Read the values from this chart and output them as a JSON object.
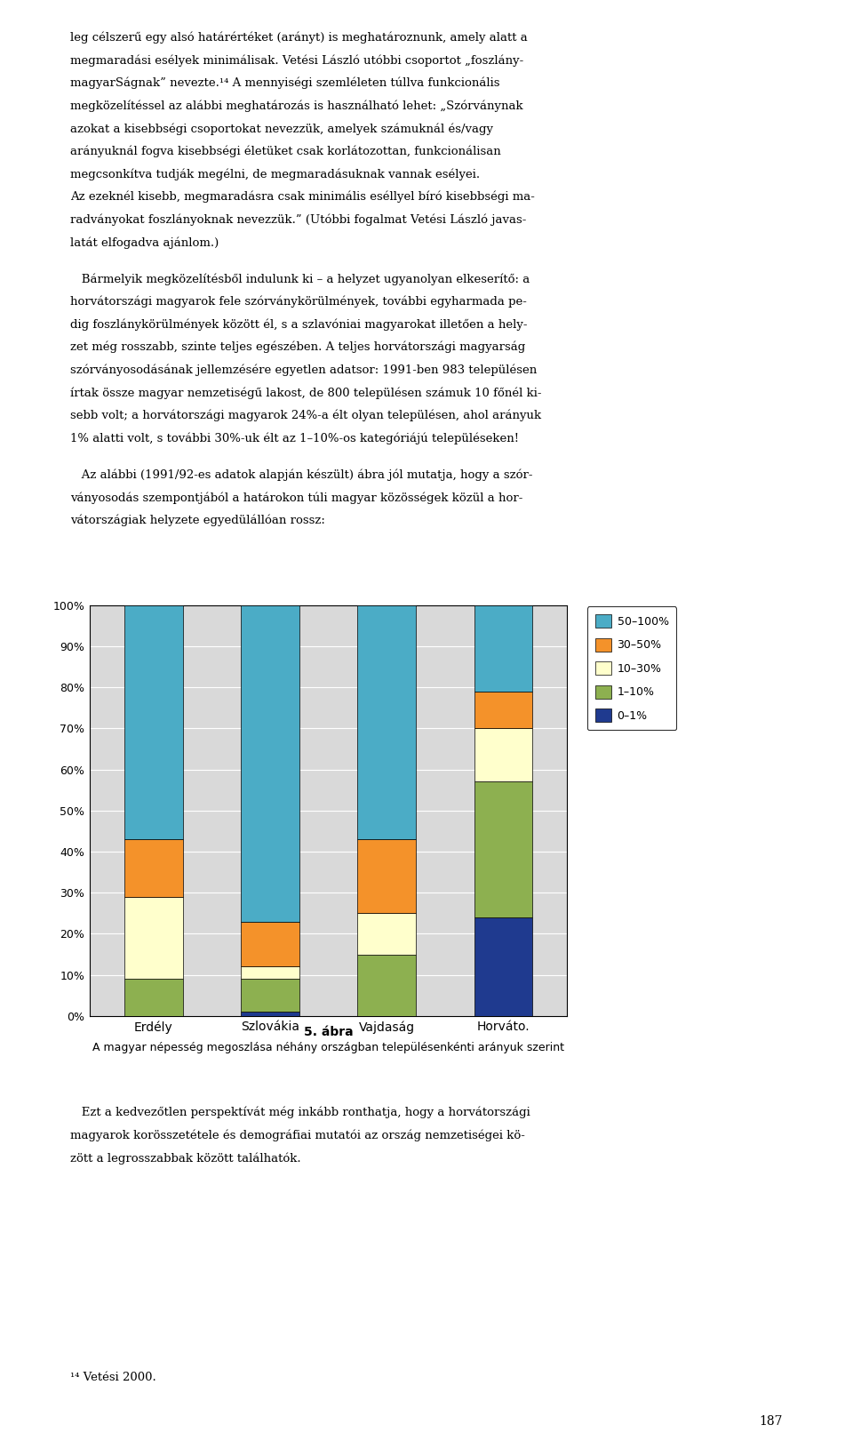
{
  "categories": [
    "Erdély",
    "Szlovákia",
    "Vajdaság",
    "Horváto."
  ],
  "series_order": [
    "0-1%",
    "1-10%",
    "10-30%",
    "30-50%",
    "50-100%"
  ],
  "series": {
    "0-1%": [
      0,
      1,
      0,
      24
    ],
    "1-10%": [
      9,
      8,
      15,
      33
    ],
    "10-30%": [
      20,
      3,
      10,
      13
    ],
    "30-50%": [
      14,
      11,
      18,
      9
    ],
    "50-100%": [
      57,
      77,
      57,
      21
    ]
  },
  "colors": {
    "0-1%": "#1f3a8f",
    "1-10%": "#8db050",
    "10-30%": "#ffffcc",
    "30-50%": "#f4922a",
    "50-100%": "#4bacc6"
  },
  "legend_labels": {
    "0-1%": "0–1%",
    "1-10%": "1–10%",
    "10-30%": "10–30%",
    "30-50%": "30–50%",
    "50-100%": "50–100%"
  },
  "ytick_labels": [
    "0%",
    "10%",
    "20%",
    "30%",
    "40%",
    "50%",
    "60%",
    "70%",
    "80%",
    "90%",
    "100%"
  ],
  "ytick_values": [
    0,
    10,
    20,
    30,
    40,
    50,
    60,
    70,
    80,
    90,
    100
  ],
  "legend_order": [
    "50-100%",
    "30-50%",
    "10-30%",
    "1-10%",
    "0-1%"
  ],
  "caption_line1": "5. ábra",
  "caption_line2": "A magyar népesség megoszlása néhány országban településenkénti arányuk szerint",
  "chart_bg": "#d9d9d9",
  "figsize": [
    9.6,
    16.21
  ],
  "dpi": 100
}
